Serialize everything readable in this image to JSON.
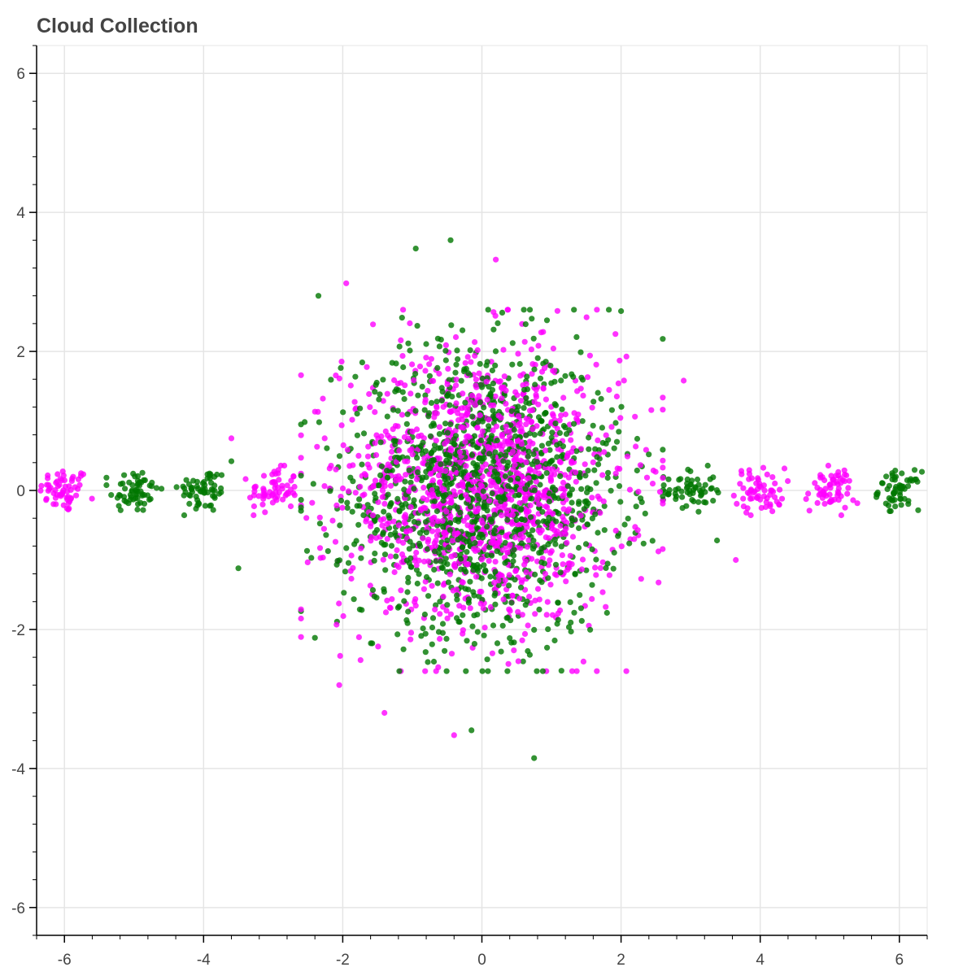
{
  "chart_data": {
    "type": "scatter",
    "title": "Cloud Collection",
    "xlabel": "",
    "ylabel": "",
    "xlim": [
      -6.4,
      6.4
    ],
    "ylim": [
      -6.4,
      6.4
    ],
    "x_ticks": [
      -6,
      -4,
      -2,
      0,
      2,
      4,
      6
    ],
    "y_ticks": [
      -6,
      -4,
      -2,
      0,
      2,
      4,
      6
    ],
    "x_tick_labels": [
      "-6",
      "-4",
      "-2",
      "0",
      "2",
      "4",
      "6"
    ],
    "y_tick_labels": [
      "-6",
      "-4",
      "-2",
      "0",
      "2",
      "4",
      "6"
    ],
    "grid": true,
    "legend": "none",
    "colors": {
      "green": "#007700",
      "magenta": "#ff00ff"
    },
    "clusters": [
      {
        "color": "magenta",
        "center": [
          -6,
          0
        ],
        "spread": 0.18,
        "count": 60
      },
      {
        "color": "green",
        "center": [
          -5,
          0
        ],
        "spread": 0.18,
        "count": 60
      },
      {
        "color": "green",
        "center": [
          -4,
          0
        ],
        "spread": 0.18,
        "count": 60
      },
      {
        "color": "magenta",
        "center": [
          -3,
          0
        ],
        "spread": 0.18,
        "count": 60
      },
      {
        "color": "green",
        "center": [
          3,
          0
        ],
        "spread": 0.18,
        "count": 60
      },
      {
        "color": "magenta",
        "center": [
          4,
          0
        ],
        "spread": 0.18,
        "count": 60
      },
      {
        "color": "magenta",
        "center": [
          5,
          0
        ],
        "spread": 0.18,
        "count": 60
      },
      {
        "color": "green",
        "center": [
          6,
          0
        ],
        "spread": 0.15,
        "count": 60
      },
      {
        "color": "green",
        "center": [
          0,
          0
        ],
        "spread": 1.0,
        "count": 1300
      },
      {
        "color": "magenta",
        "center": [
          0,
          0
        ],
        "spread": 1.0,
        "count": 1300
      }
    ],
    "outliers": [
      {
        "color": "green",
        "x": 0.75,
        "y": -3.85
      },
      {
        "color": "green",
        "x": -0.45,
        "y": 3.6
      },
      {
        "color": "green",
        "x": -0.95,
        "y": 3.48
      },
      {
        "color": "magenta",
        "x": 0.2,
        "y": 3.32
      },
      {
        "color": "magenta",
        "x": -0.4,
        "y": -3.52
      },
      {
        "color": "magenta",
        "x": -2.05,
        "y": -2.8
      },
      {
        "color": "green",
        "x": -3.5,
        "y": -1.12
      },
      {
        "color": "magenta",
        "x": 3.65,
        "y": -1.0
      },
      {
        "color": "green",
        "x": 3.38,
        "y": -0.72
      },
      {
        "color": "magenta",
        "x": -3.6,
        "y": 0.75
      },
      {
        "color": "green",
        "x": -3.6,
        "y": 0.42
      },
      {
        "color": "magenta",
        "x": 2.9,
        "y": 1.58
      },
      {
        "color": "green",
        "x": -2.35,
        "y": 2.8
      },
      {
        "color": "magenta",
        "x": -1.95,
        "y": 2.98
      },
      {
        "color": "green",
        "x": 2.0,
        "y": 2.58
      },
      {
        "color": "magenta",
        "x": -1.4,
        "y": -3.2
      },
      {
        "color": "green",
        "x": -0.15,
        "y": -3.45
      },
      {
        "color": "green",
        "x": -2.4,
        "y": -2.12
      }
    ]
  }
}
